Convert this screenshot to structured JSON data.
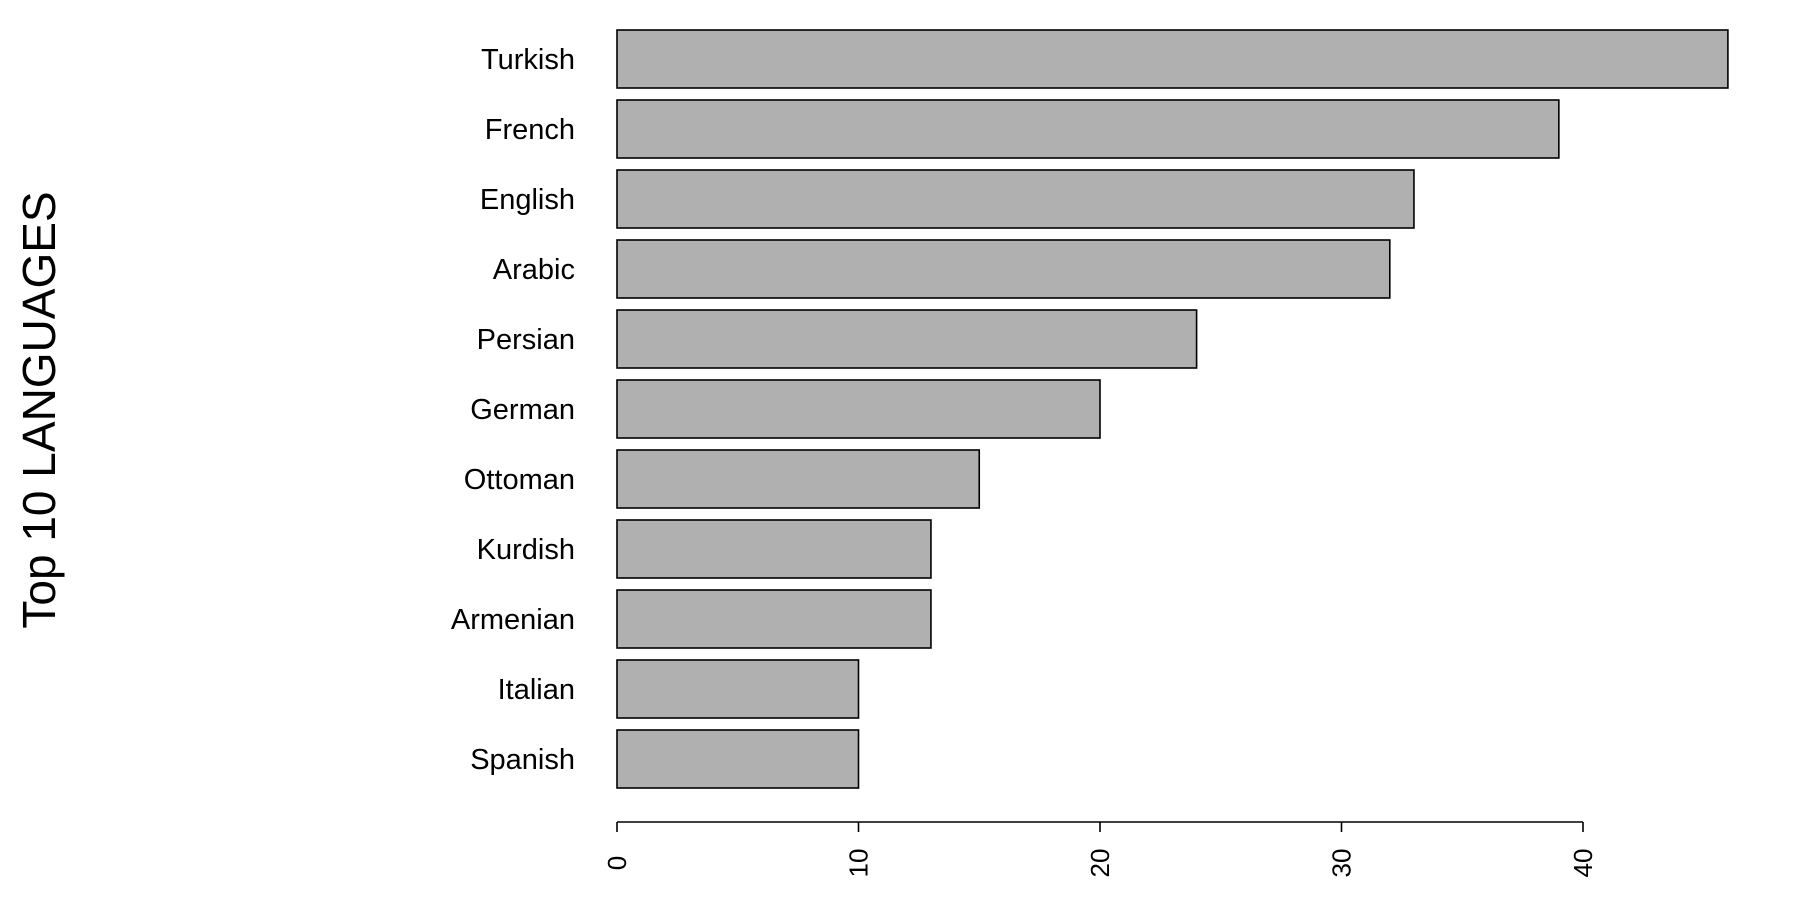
{
  "chart_data": {
    "type": "bar",
    "orientation": "horizontal",
    "title": "",
    "xlabel": "",
    "ylabel": "Top 10 LANGUAGES",
    "categories": [
      "Turkish",
      "French",
      "English",
      "Arabic",
      "Persian",
      "German",
      "Ottoman",
      "Kurdish",
      "Armenian",
      "Italian",
      "Spanish"
    ],
    "values": [
      46,
      39,
      33,
      32,
      24,
      20,
      15,
      13,
      13,
      10,
      10
    ],
    "xlim": [
      0,
      46
    ],
    "x_ticks": [
      0,
      10,
      20,
      30,
      40
    ],
    "grid": false,
    "legend": "none",
    "bar_color": "#b0b0b0",
    "bar_edge_color": "#000000"
  }
}
